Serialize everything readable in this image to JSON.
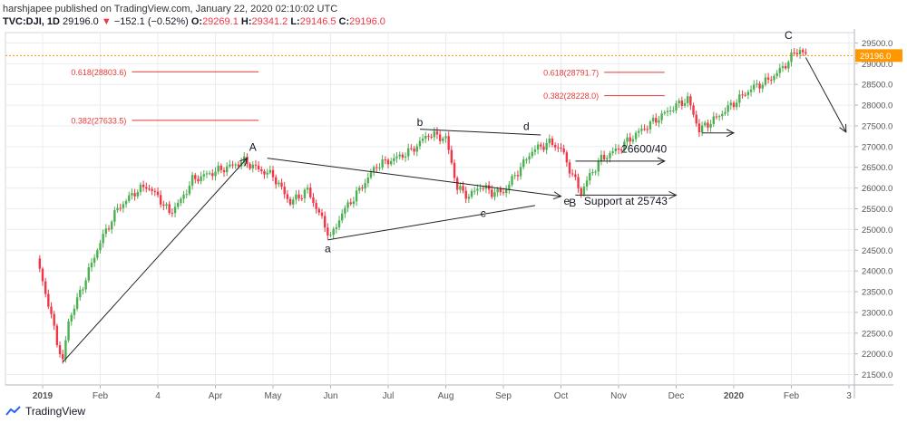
{
  "header": {
    "publisher_line": "harshjapee published on TradingView.com, January 22, 2020 02:10:02 UTC",
    "symbol": "TVC:DJI, 1D",
    "last": "29196.0",
    "arrow": "▼",
    "change": "−152.1 (−0.52%)",
    "o_label": "O:",
    "o": "29269.1",
    "h_label": "H:",
    "h": "29341.2",
    "l_label": "L:",
    "l": "29146.5",
    "c_label": "C:",
    "c": "29196.0"
  },
  "brand": {
    "name": "TradingView"
  },
  "colors": {
    "up": "#4caf50",
    "down": "#f23645",
    "fib": "#e53935",
    "price_line": "#ff9800",
    "grid": "#e9ecef",
    "axis_text": "#555"
  },
  "chart_data": {
    "type": "candlestick",
    "ylim": [
      21250,
      29750
    ],
    "y_ticks": [
      21500,
      22000,
      22500,
      23000,
      23500,
      24000,
      24500,
      25000,
      25500,
      26000,
      26500,
      27000,
      27500,
      28000,
      28500,
      29000,
      29500
    ],
    "y_tick_labels": [
      "21500.0",
      "22000.0",
      "22500.0",
      "23000.0",
      "23500.0",
      "24000.0",
      "24500.0",
      "25000.0",
      "25500.0",
      "26000.0",
      "26500.0",
      "27000.0",
      "27500.0",
      "28000.0",
      "28500.0",
      "29000.0",
      "29500.0"
    ],
    "x_ticks": [
      "2019",
      "Feb",
      "4",
      "Apr",
      "May",
      "Jun",
      "Jul",
      "Aug",
      "Sep",
      "Oct",
      "Nov",
      "Dec",
      "2020",
      "Feb",
      "3"
    ],
    "x_tick_months": [
      0,
      1,
      2,
      3,
      4,
      5,
      6,
      7,
      8,
      9,
      10,
      11,
      12,
      13,
      14
    ],
    "last_price": 29196.0,
    "last_price_label": "29196.0",
    "price_path": [
      [
        -0.1,
        24300
      ],
      [
        0.1,
        23200
      ],
      [
        0.25,
        22300
      ],
      [
        0.35,
        21800
      ],
      [
        0.45,
        22800
      ],
      [
        0.6,
        23300
      ],
      [
        0.8,
        24000
      ],
      [
        1.0,
        24700
      ],
      [
        1.3,
        25500
      ],
      [
        1.6,
        25900
      ],
      [
        1.8,
        26050
      ],
      [
        2.0,
        25800
      ],
      [
        2.2,
        25400
      ],
      [
        2.4,
        25700
      ],
      [
        2.6,
        26200
      ],
      [
        2.9,
        26350
      ],
      [
        3.1,
        26450
      ],
      [
        3.5,
        26650
      ],
      [
        3.75,
        26450
      ],
      [
        4.0,
        26300
      ],
      [
        4.3,
        25650
      ],
      [
        4.6,
        25950
      ],
      [
        4.9,
        25100
      ],
      [
        5.0,
        24800
      ],
      [
        5.2,
        25400
      ],
      [
        5.5,
        25950
      ],
      [
        5.8,
        26550
      ],
      [
        6.1,
        26700
      ],
      [
        6.4,
        26900
      ],
      [
        6.7,
        27300
      ],
      [
        7.0,
        27200
      ],
      [
        7.2,
        26000
      ],
      [
        7.4,
        25800
      ],
      [
        7.6,
        26050
      ],
      [
        7.8,
        25900
      ],
      [
        8.0,
        25900
      ],
      [
        8.2,
        26300
      ],
      [
        8.5,
        26900
      ],
      [
        8.8,
        27100
      ],
      [
        9.0,
        26950
      ],
      [
        9.2,
        26300
      ],
      [
        9.35,
        25900
      ],
      [
        9.5,
        26300
      ],
      [
        9.7,
        26700
      ],
      [
        10.0,
        26950
      ],
      [
        10.3,
        27300
      ],
      [
        10.6,
        27600
      ],
      [
        10.9,
        27900
      ],
      [
        11.2,
        28150
      ],
      [
        11.4,
        27400
      ],
      [
        11.7,
        27700
      ],
      [
        12.0,
        28050
      ],
      [
        12.3,
        28400
      ],
      [
        12.6,
        28600
      ],
      [
        12.85,
        28900
      ],
      [
        13.05,
        29250
      ],
      [
        13.15,
        29341
      ],
      [
        13.25,
        29196
      ]
    ],
    "annotations": [
      {
        "text": "A",
        "x": 3.65,
        "y": 26900
      },
      {
        "text": "a",
        "x": 4.95,
        "y": 24450
      },
      {
        "text": "b",
        "x": 6.55,
        "y": 27500
      },
      {
        "text": "c",
        "x": 7.65,
        "y": 25300
      },
      {
        "text": "d",
        "x": 8.4,
        "y": 27400
      },
      {
        "text": "e",
        "x": 9.1,
        "y": 25600
      },
      {
        "text": "B",
        "x": 9.2,
        "y": 25550
      },
      {
        "text": "C",
        "x": 12.95,
        "y": 29600
      },
      {
        "text": "26600/40",
        "x": 10.05,
        "y": 26850
      },
      {
        "text": "Support at 25743",
        "x": 9.4,
        "y": 25600
      }
    ],
    "fib_levels": [
      {
        "label": "0.618(28803.6)",
        "y": 28803.6,
        "x0": 1.55,
        "x1": 3.75
      },
      {
        "label": "0.382(27633.5)",
        "y": 27633.5,
        "x0": 1.55,
        "x1": 3.75
      },
      {
        "label": "0.618(28791.7)",
        "y": 28791.7,
        "x0": 9.75,
        "x1": 10.8
      },
      {
        "label": "0.382(28228.0)",
        "y": 28228.0,
        "x0": 9.75,
        "x1": 10.8
      }
    ],
    "lines": [
      {
        "x0": 0.35,
        "y0": 21800,
        "x1": 3.55,
        "y1": 26720,
        "arrow": true
      },
      {
        "x0": 3.9,
        "y0": 26720,
        "x1": 9.0,
        "y1": 25800,
        "arrow": true
      },
      {
        "x0": 4.95,
        "y0": 24750,
        "x1": 8.55,
        "y1": 25580,
        "arrow": false
      },
      {
        "x0": 6.55,
        "y0": 27420,
        "x1": 8.65,
        "y1": 27280,
        "arrow": false
      },
      {
        "x0": 9.25,
        "y0": 26650,
        "x1": 10.8,
        "y1": 26650,
        "arrow": true
      },
      {
        "x0": 9.25,
        "y0": 25830,
        "x1": 11.0,
        "y1": 25830,
        "arrow": true
      },
      {
        "x0": 11.45,
        "y0": 27330,
        "x1": 12.0,
        "y1": 27330,
        "arrow": true
      },
      {
        "x0": 13.25,
        "y0": 29150,
        "x1": 13.95,
        "y1": 27350,
        "arrow": true
      }
    ]
  }
}
